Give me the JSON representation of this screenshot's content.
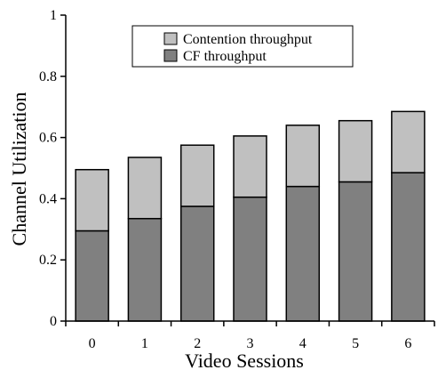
{
  "chart_data": {
    "type": "bar",
    "stacked": true,
    "categories": [
      "0",
      "1",
      "2",
      "3",
      "4",
      "5",
      "6"
    ],
    "series": [
      {
        "name": "CF throughput",
        "values": [
          0.295,
          0.335,
          0.375,
          0.405,
          0.44,
          0.455,
          0.485
        ],
        "color": "#808080"
      },
      {
        "name": "Contention throughput",
        "values": [
          0.2,
          0.2,
          0.2,
          0.2,
          0.2,
          0.2,
          0.2
        ],
        "color": "#c0c0c0"
      }
    ],
    "xlabel": "Video Sessions",
    "ylabel": "Channel Utilization",
    "ylim": [
      0,
      1
    ],
    "yticks": [
      "0",
      "0.2",
      "0.4",
      "0.6",
      "0.8",
      "1"
    ],
    "grid": false,
    "legend_position": "top"
  }
}
